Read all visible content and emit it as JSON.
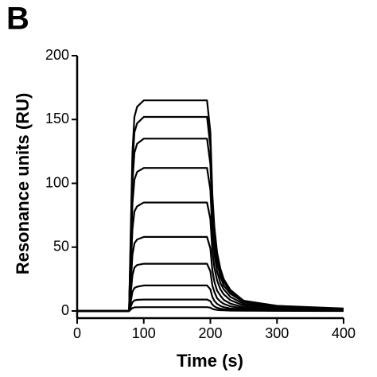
{
  "panel_label": "B",
  "chart_data": {
    "type": "line",
    "x_label": "Time (s)",
    "y_label": "Resonance units (RU)",
    "color": "#000000",
    "x": [
      0,
      78,
      80,
      83,
      86,
      90,
      100,
      150,
      195,
      200,
      203,
      206,
      210,
      215,
      220,
      230,
      250,
      300,
      400
    ],
    "series": [
      {
        "values": [
          0,
          0,
          49.5,
          124,
          152,
          160,
          165,
          165,
          165,
          140,
          91,
          66,
          46,
          33,
          25,
          16.5,
          8,
          4,
          2
        ]
      },
      {
        "values": [
          0,
          0,
          46,
          114,
          140,
          147,
          152,
          152,
          152,
          129,
          84,
          61,
          43,
          30,
          23,
          15,
          8,
          4,
          1.5
        ]
      },
      {
        "values": [
          0,
          0,
          40,
          101,
          124,
          131,
          135,
          135,
          135,
          115,
          74,
          54,
          38,
          27,
          20,
          13.5,
          7,
          3.4,
          1.4
        ]
      },
      {
        "values": [
          0,
          0,
          34,
          84,
          103,
          109,
          112,
          112,
          112,
          95,
          62,
          45,
          31,
          22,
          17,
          11,
          5.6,
          2.8,
          1.1
        ]
      },
      {
        "values": [
          0,
          0,
          26,
          64,
          78,
          82,
          85,
          85,
          85,
          72,
          47,
          34,
          24,
          17,
          13,
          8.5,
          4.3,
          2.1,
          0.9
        ]
      },
      {
        "values": [
          0,
          0,
          17,
          44,
          53,
          56,
          58,
          58,
          58,
          49,
          32,
          23,
          16,
          12,
          8.7,
          5.8,
          2.9,
          1.5,
          0.6
        ]
      },
      {
        "values": [
          0,
          0,
          11,
          28,
          34,
          36,
          37,
          37,
          37,
          31,
          20,
          15,
          10,
          7.4,
          5.6,
          3.7,
          1.9,
          0.9,
          0.4
        ]
      },
      {
        "values": [
          0,
          0,
          6,
          15,
          18,
          19,
          20,
          20,
          20,
          17,
          11,
          8,
          5.6,
          4,
          3,
          2,
          1,
          0.5,
          0.2
        ]
      },
      {
        "values": [
          0,
          0,
          2.7,
          6.8,
          8.3,
          8.7,
          9,
          9,
          9,
          7.7,
          5,
          3.6,
          2.5,
          1.8,
          1.4,
          0.9,
          0.5,
          0.2,
          0.1
        ]
      },
      {
        "values": [
          0,
          0,
          0.9,
          2.3,
          2.8,
          2.9,
          3,
          3,
          3,
          2.6,
          1.7,
          1.2,
          0.8,
          0.6,
          0.5,
          0.3,
          0.2,
          0.1,
          0
        ]
      }
    ],
    "xlim": [
      0,
      400
    ],
    "xticks": [
      0,
      100,
      200,
      300,
      400
    ],
    "ylim": [
      0,
      200
    ],
    "yticks": [
      0,
      50,
      100,
      150,
      200
    ]
  }
}
